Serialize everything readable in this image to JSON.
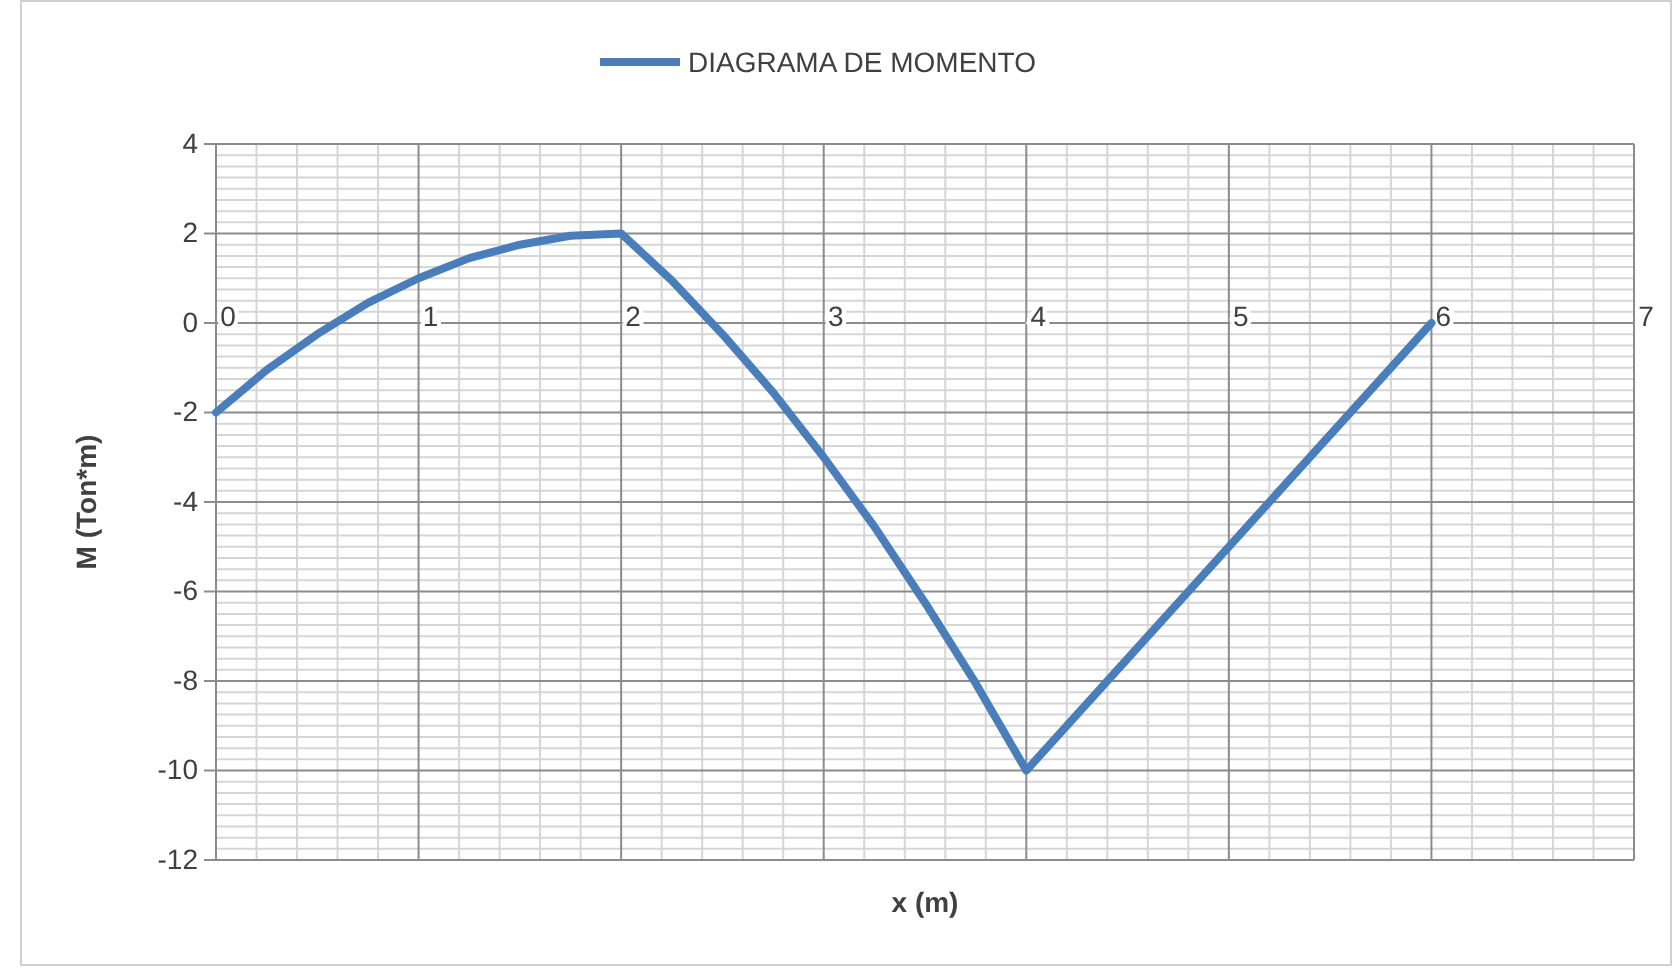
{
  "chart_data": {
    "type": "line",
    "xlabel": "x (m)",
    "ylabel": "M (Ton*m)",
    "xlim": [
      0,
      7
    ],
    "xticks": [
      0,
      1,
      2,
      3,
      4,
      5,
      6,
      7
    ],
    "ylim": [
      -12,
      4
    ],
    "yticks": [
      4,
      2,
      0,
      -2,
      -4,
      -6,
      -8,
      -10,
      -12
    ],
    "grid": true,
    "legend": "top",
    "marker": "none",
    "line_style": "solid",
    "series": [
      {
        "name": "DIAGRAMA DE MOMENTO",
        "color": "#4a7ebb",
        "x": [
          0,
          0.25,
          0.5,
          0.75,
          1,
          1.25,
          1.5,
          1.75,
          2,
          2.25,
          2.5,
          2.75,
          3,
          3.25,
          3.5,
          3.75,
          4,
          6
        ],
        "values": [
          -2,
          -1.05,
          -0.25,
          0.45,
          1,
          1.45,
          1.75,
          1.95,
          2,
          0.95,
          -0.25,
          -1.55,
          -3,
          -4.55,
          -6.25,
          -8.05,
          -10,
          0
        ]
      }
    ]
  }
}
